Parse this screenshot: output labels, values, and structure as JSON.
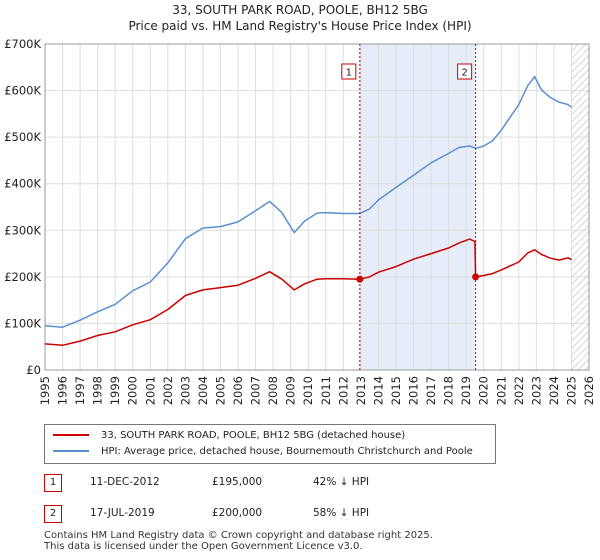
{
  "chart_data": {
    "type": "line",
    "title": "33, SOUTH PARK ROAD, POOLE, BH12 5BG",
    "subtitle": "Price paid vs. HM Land Registry's House Price Index (HPI)",
    "xlim": [
      1995,
      2026
    ],
    "ylim": [
      0,
      700000
    ],
    "x_ticks": [
      1995,
      1996,
      1997,
      1998,
      1999,
      2000,
      2001,
      2002,
      2003,
      2004,
      2005,
      2006,
      2007,
      2008,
      2009,
      2010,
      2011,
      2012,
      2013,
      2014,
      2015,
      2016,
      2017,
      2018,
      2019,
      2020,
      2021,
      2022,
      2023,
      2024,
      2025,
      2026
    ],
    "y_ticks": [
      {
        "value": 0,
        "label": "£0"
      },
      {
        "value": 100000,
        "label": "£100K"
      },
      {
        "value": 200000,
        "label": "£200K"
      },
      {
        "value": 300000,
        "label": "£300K"
      },
      {
        "value": 400000,
        "label": "£400K"
      },
      {
        "value": 500000,
        "label": "£500K"
      },
      {
        "value": 600000,
        "label": "£600K"
      },
      {
        "value": 700000,
        "label": "£700K"
      }
    ],
    "grid": true,
    "shaded_ranges": [
      {
        "start": 2012.94,
        "end": 2019.54
      }
    ],
    "hatched_from": 2025.0,
    "series": [
      {
        "name": "33, SOUTH PARK ROAD, POOLE, BH12 5BG (detached house)",
        "color": "#cc0000",
        "x": [
          1995.0,
          1996.0,
          1997.0,
          1998.0,
          1999.0,
          2000.0,
          2001.0,
          2002.0,
          2003.0,
          2004.0,
          2005.0,
          2006.0,
          2007.0,
          2007.8,
          2008.5,
          2009.2,
          2009.8,
          2010.5,
          2011.0,
          2012.0,
          2012.94,
          2013.5,
          2014.0,
          2015.0,
          2016.0,
          2017.0,
          2018.0,
          2018.6,
          2019.2,
          2019.5,
          2019.54,
          2020.0,
          2020.5,
          2021.0,
          2022.0,
          2022.5,
          2022.9,
          2023.3,
          2023.8,
          2024.3,
          2024.8,
          2025.0
        ],
        "y": [
          56000,
          53000,
          62000,
          74000,
          82000,
          97000,
          108000,
          130000,
          160000,
          172000,
          177000,
          182000,
          197000,
          211000,
          195000,
          172000,
          185000,
          195000,
          196000,
          196000,
          195000,
          200000,
          210000,
          222000,
          238000,
          250000,
          262000,
          273000,
          281000,
          276000,
          200000,
          203000,
          207000,
          215000,
          232000,
          251000,
          258000,
          248000,
          240000,
          236000,
          241000,
          237000
        ]
      },
      {
        "name": "HPI: Average price, detached house, Bournemouth Christchurch and Poole",
        "color": "#5b8fd0",
        "x": [
          1995.0,
          1996.0,
          1997.0,
          1998.0,
          1999.0,
          2000.0,
          2001.0,
          2002.0,
          2003.0,
          2004.0,
          2005.0,
          2006.0,
          2007.0,
          2007.8,
          2008.5,
          2009.2,
          2009.8,
          2010.5,
          2011.0,
          2012.0,
          2012.94,
          2013.5,
          2014.0,
          2015.0,
          2016.0,
          2017.0,
          2018.0,
          2018.6,
          2019.2,
          2019.54,
          2020.0,
          2020.5,
          2021.0,
          2022.0,
          2022.5,
          2022.9,
          2023.3,
          2023.8,
          2024.3,
          2024.8,
          2025.0
        ],
        "y": [
          95000,
          92000,
          107000,
          125000,
          141000,
          170000,
          189000,
          230000,
          282000,
          305000,
          308000,
          318000,
          342000,
          362000,
          338000,
          295000,
          320000,
          337000,
          338000,
          336000,
          336000,
          346000,
          365000,
          392000,
          418000,
          445000,
          465000,
          478000,
          481000,
          476000,
          481000,
          492000,
          515000,
          570000,
          610000,
          630000,
          601000,
          585000,
          575000,
          570000,
          564000
        ]
      }
    ],
    "annotations": [
      {
        "label": "1",
        "x": 2012.94,
        "value": 195000
      },
      {
        "label": "2",
        "x": 2019.54,
        "value": 200000
      }
    ]
  },
  "legend": {
    "items": [
      {
        "label": "33, SOUTH PARK ROAD, POOLE, BH12 5BG (detached house)",
        "color": "#cc0000"
      },
      {
        "label": "HPI: Average price, detached house, Bournemouth Christchurch and Poole",
        "color": "#5b8fd0"
      }
    ]
  },
  "transactions": [
    {
      "num": "1",
      "date": "11-DEC-2012",
      "price": "£195,000",
      "hpi": "42% ↓ HPI"
    },
    {
      "num": "2",
      "date": "17-JUL-2019",
      "price": "£200,000",
      "hpi": "58% ↓ HPI"
    }
  ],
  "footer": {
    "line1": "Contains HM Land Registry data © Crown copyright and database right 2025.",
    "line2": "This data is licensed under the Open Government Licence v3.0."
  }
}
